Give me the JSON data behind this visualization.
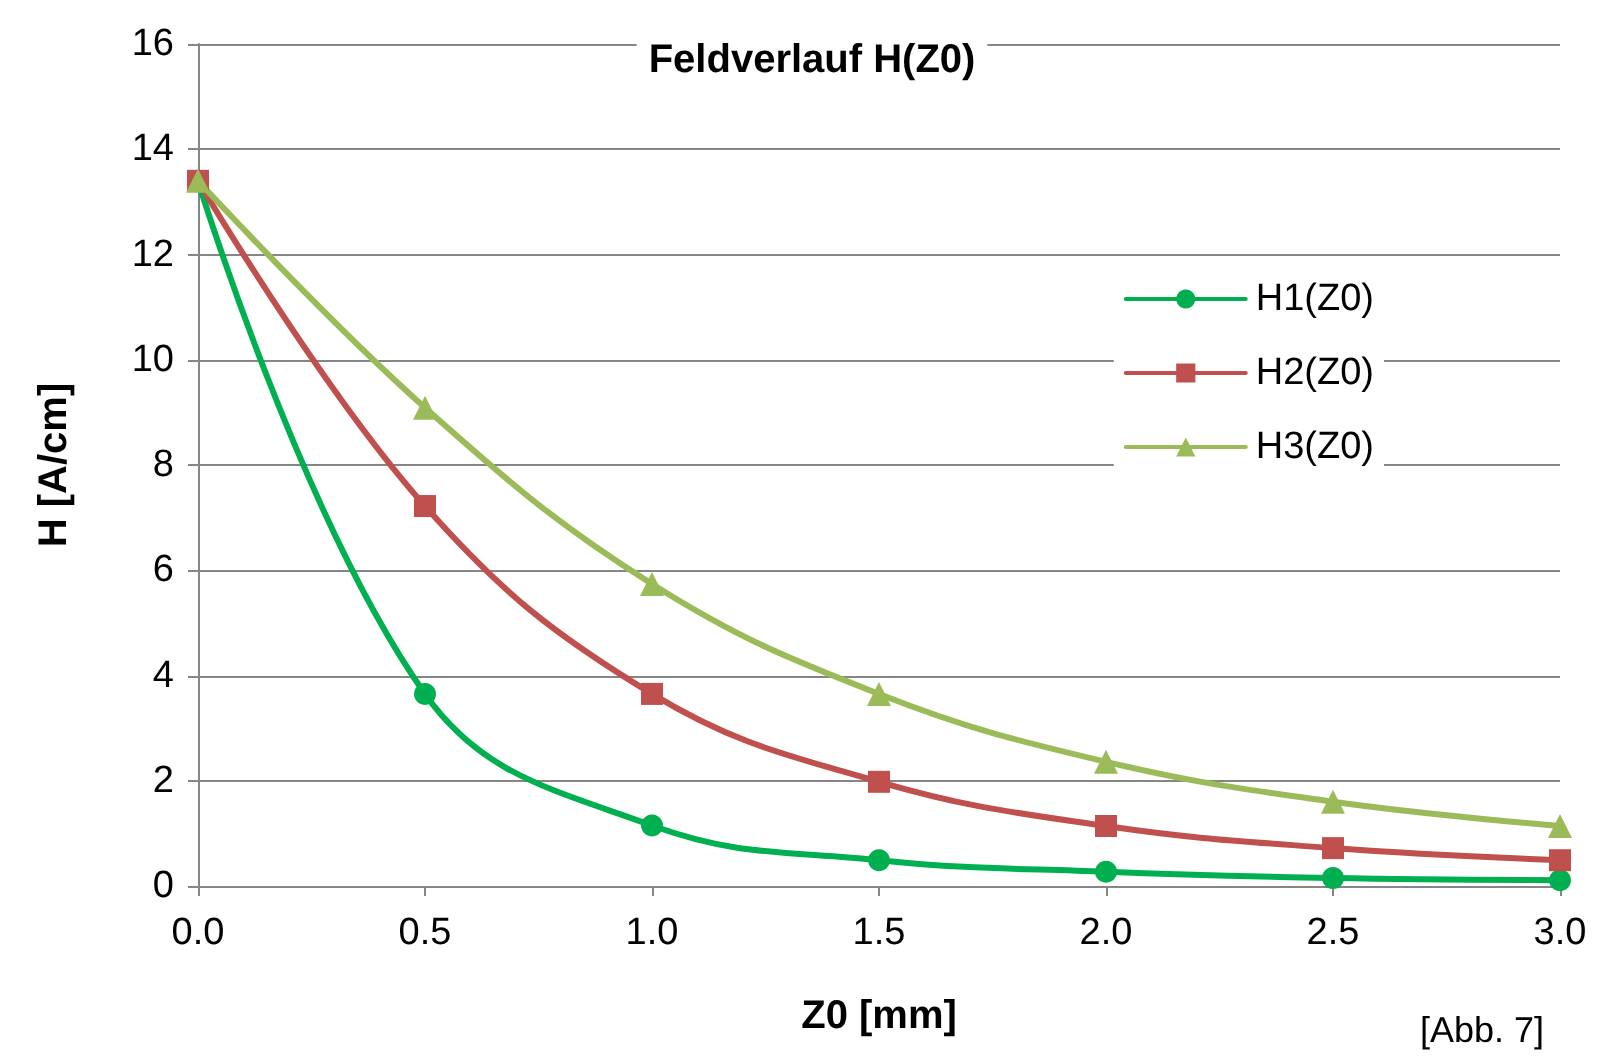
{
  "chart_data": {
    "type": "line",
    "title": "Feldverlauf H(Z0)",
    "xlabel": "Z0 [mm]",
    "ylabel": "H [A/cm]",
    "annotations": [
      "[Abb. 7]"
    ],
    "x": [
      0,
      0.5,
      1,
      1.5,
      2,
      2.5,
      3
    ],
    "series": [
      {
        "name": "H1(Z0)",
        "color": "#00b050",
        "marker": "circle",
        "values": [
          13.4,
          3.65,
          1.15,
          0.49,
          0.27,
          0.15,
          0.11
        ]
      },
      {
        "name": "H2(Z0)",
        "color": "#c0504d",
        "marker": "square",
        "values": [
          13.4,
          7.22,
          3.65,
          1.98,
          1.14,
          0.72,
          0.49
        ]
      },
      {
        "name": "H3(Z0)",
        "color": "#9bbb59",
        "marker": "triangle",
        "values": [
          13.4,
          9.09,
          5.74,
          3.65,
          2.36,
          1.6,
          1.14
        ]
      }
    ],
    "xlim": [
      0,
      3
    ],
    "xticks": [
      {
        "value": 0,
        "label": "0.0"
      },
      {
        "value": 0.5,
        "label": "0.5"
      },
      {
        "value": 1,
        "label": "1.0"
      },
      {
        "value": 1.5,
        "label": "1.5"
      },
      {
        "value": 2,
        "label": "2.0"
      },
      {
        "value": 2.5,
        "label": "2.5"
      },
      {
        "value": 3,
        "label": "3.0"
      }
    ],
    "ylim": [
      0,
      16
    ],
    "yticks": [
      0,
      2,
      4,
      6,
      8,
      10,
      12,
      14,
      16
    ],
    "grid": "y",
    "legend": "right",
    "line_style": "solid"
  }
}
